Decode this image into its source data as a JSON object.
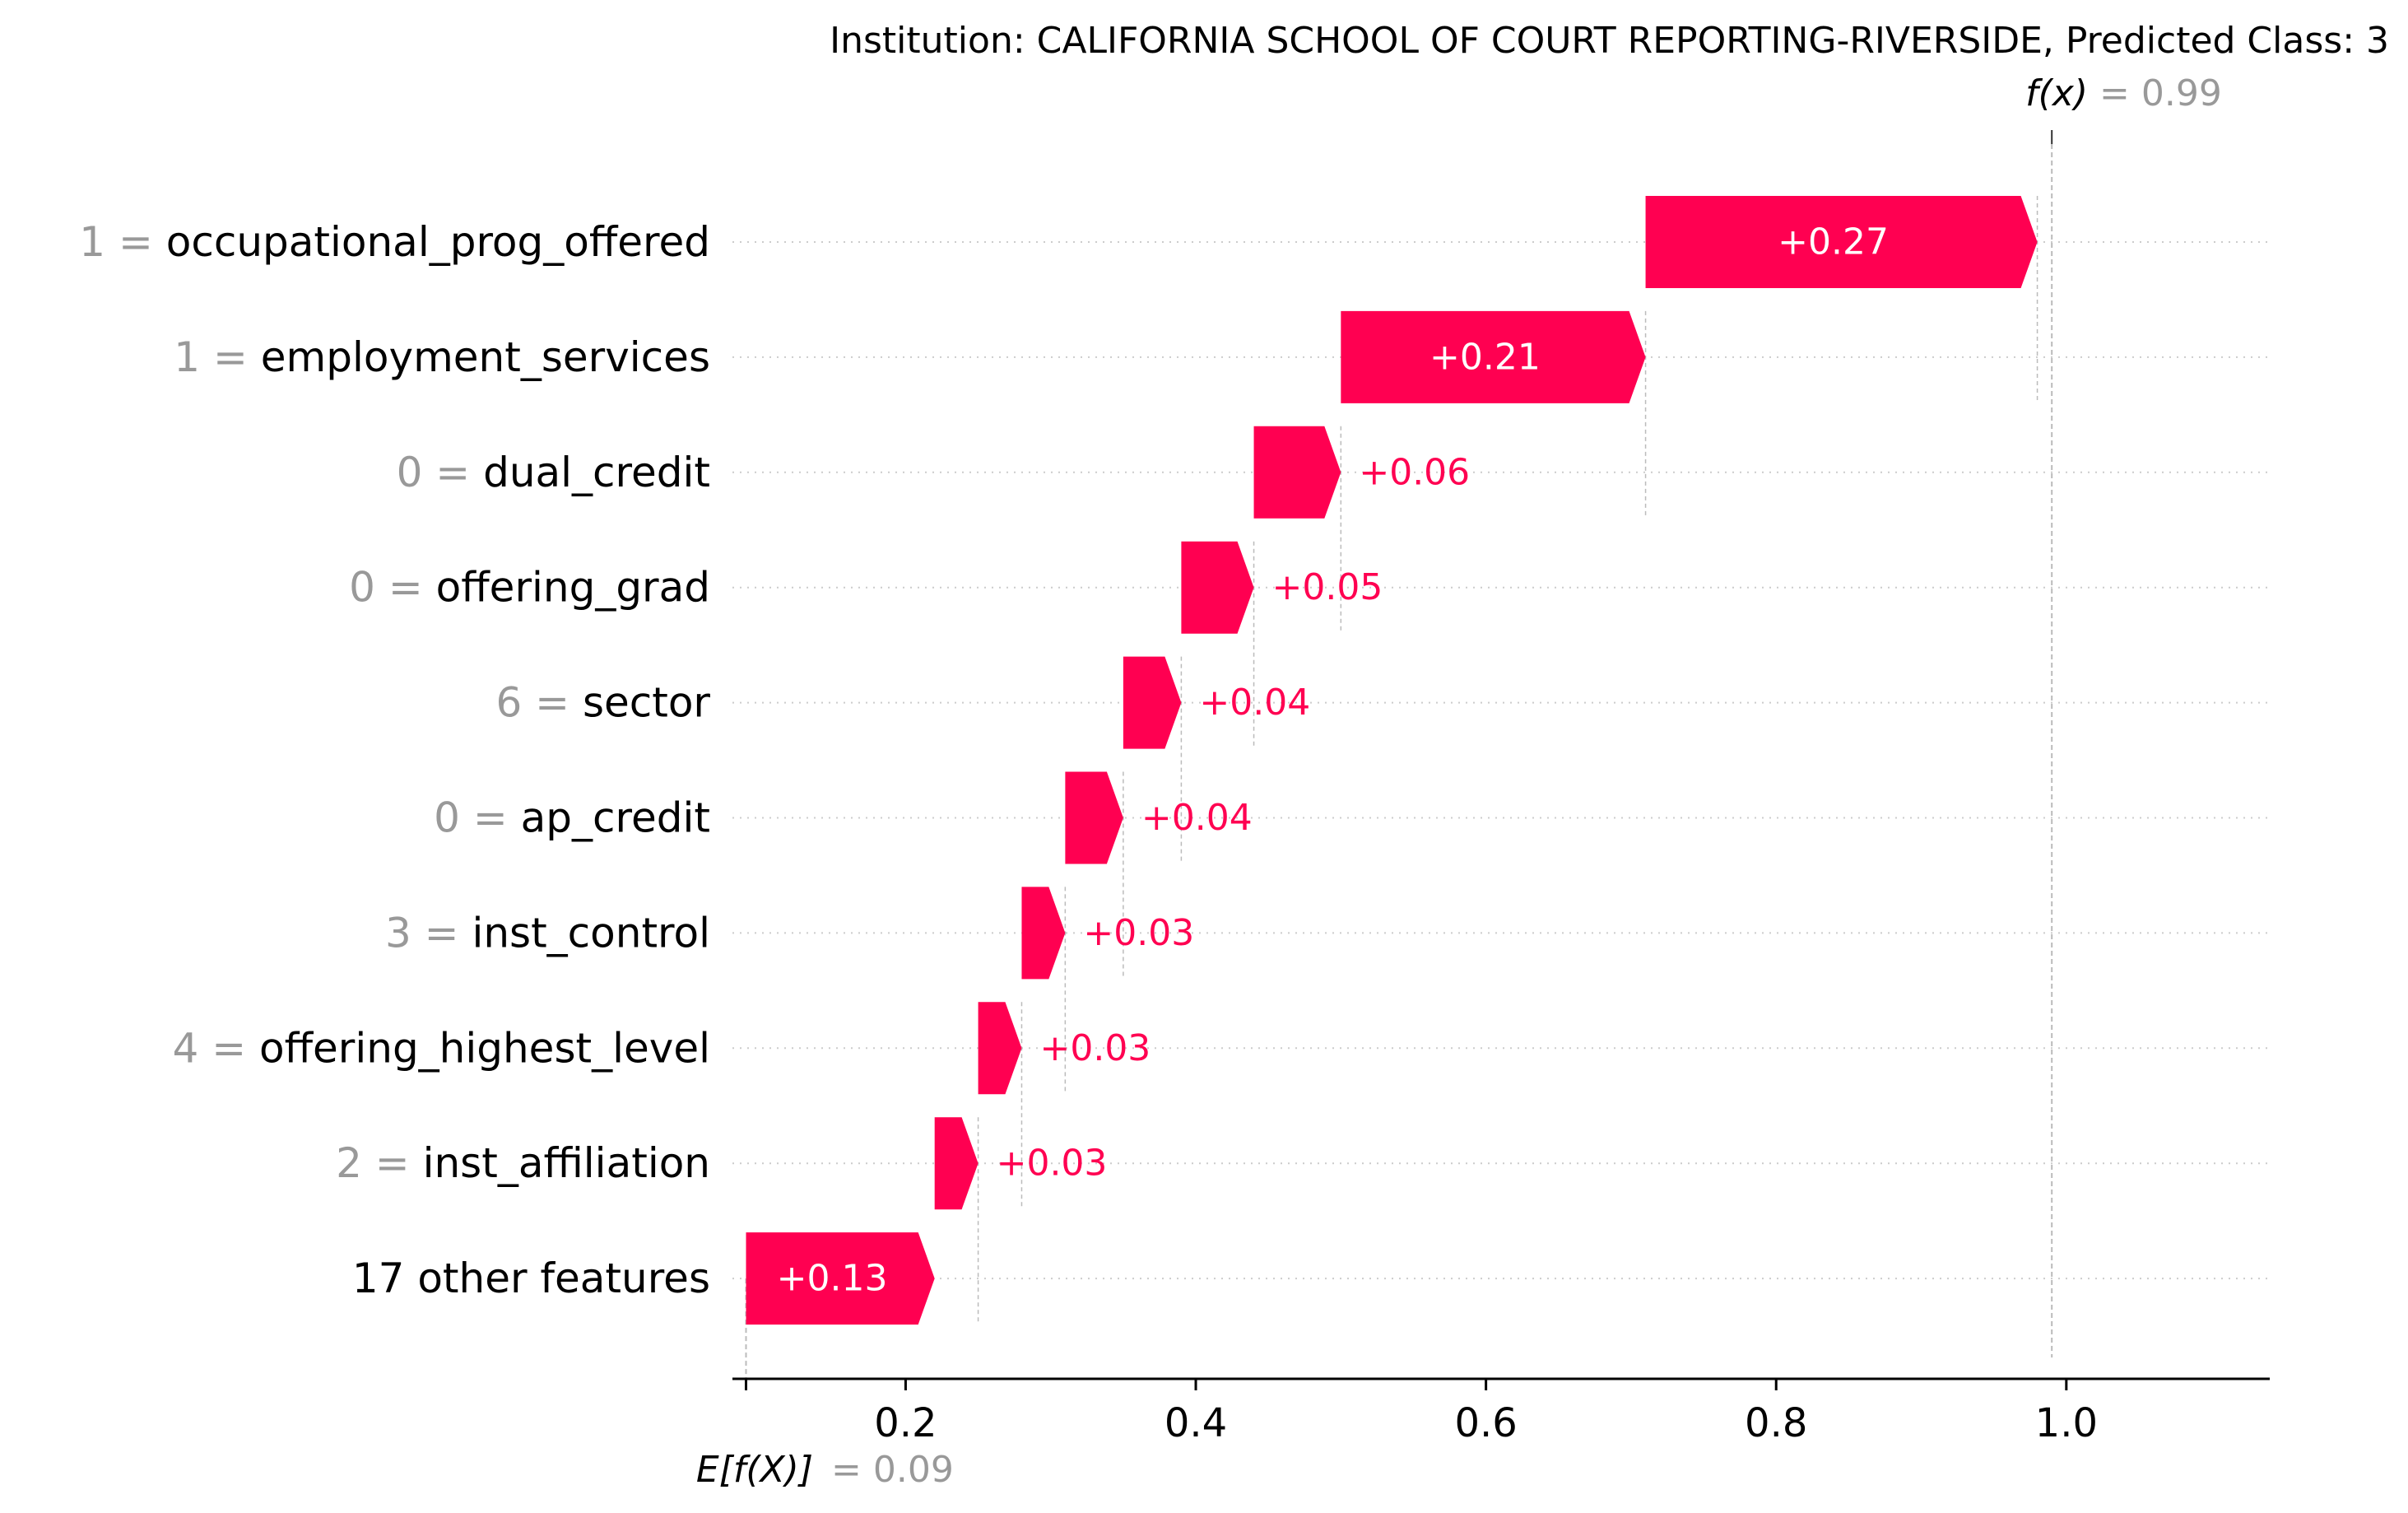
{
  "chart_data": {
    "type": "waterfall",
    "title": "Institution: CALIFORNIA SCHOOL OF COURT REPORTING-RIVERSIDE, Predicted Class: 3",
    "fx_label": "f(x)",
    "fx_value_text": "= 0.99",
    "fx_value": 0.99,
    "base_label": "E[f(X)]",
    "base_value_text": "= 0.09",
    "base_value": 0.09,
    "x_ticks": [
      0.2,
      0.4,
      0.6,
      0.8,
      1.0
    ],
    "x_tick_labels": [
      "0.2",
      "0.4",
      "0.6",
      "0.8",
      "1.0"
    ],
    "xlim": [
      0.09,
      1.14
    ],
    "features": [
      {
        "value": "1",
        "name": "occupational_prog_offered",
        "contribution": 0.27,
        "label": "+0.27"
      },
      {
        "value": "1",
        "name": "employment_services",
        "contribution": 0.21,
        "label": "+0.21"
      },
      {
        "value": "0",
        "name": "dual_credit",
        "contribution": 0.06,
        "label": "+0.06"
      },
      {
        "value": "0",
        "name": "offering_grad",
        "contribution": 0.05,
        "label": "+0.05"
      },
      {
        "value": "6",
        "name": "sector",
        "contribution": 0.04,
        "label": "+0.04"
      },
      {
        "value": "0",
        "name": "ap_credit",
        "contribution": 0.04,
        "label": "+0.04"
      },
      {
        "value": "3",
        "name": "inst_control",
        "contribution": 0.03,
        "label": "+0.03"
      },
      {
        "value": "4",
        "name": "offering_highest_level",
        "contribution": 0.03,
        "label": "+0.03"
      },
      {
        "value": "2",
        "name": "inst_affiliation",
        "contribution": 0.03,
        "label": "+0.03"
      },
      {
        "value": "",
        "name": "17 other features",
        "contribution": 0.13,
        "label": "+0.13"
      }
    ],
    "colors": {
      "positive": "#ff0051",
      "label_gray": "#999999",
      "text": "#000000",
      "grid": "#cccccc"
    },
    "grid": true
  }
}
